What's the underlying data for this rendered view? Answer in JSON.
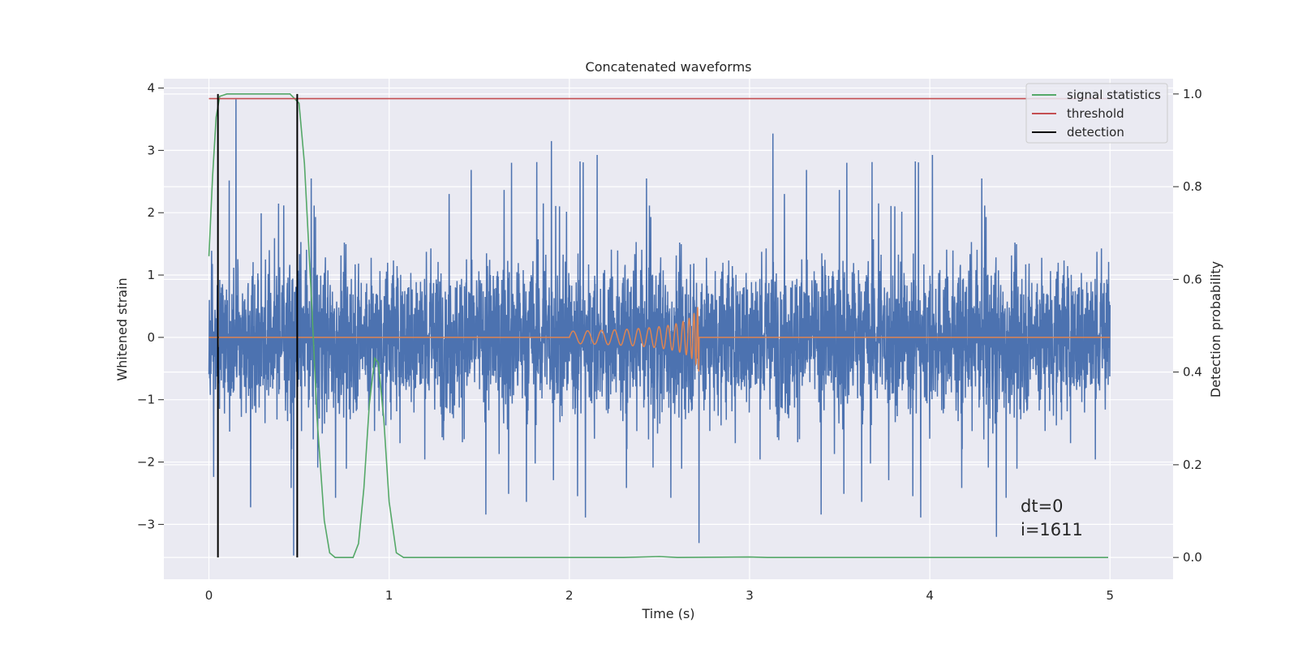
{
  "chart_data": {
    "type": "line",
    "title": "Concatenated waveforms",
    "xlabel": "Time (s)",
    "ylabel": "Whitened strain",
    "ylabel_right": "Detection probability",
    "xlim": [
      -0.25,
      5.35
    ],
    "ylim": [
      -3.88,
      4.15
    ],
    "ylim_right": [
      -0.047,
      1.033
    ],
    "xticks": [
      0,
      1,
      2,
      3,
      4,
      5
    ],
    "xtick_labels": [
      "0",
      "1",
      "2",
      "3",
      "4",
      "5"
    ],
    "yticks": [
      -3,
      -2,
      -1,
      0,
      1,
      2,
      3,
      4
    ],
    "ytick_labels": [
      "−3",
      "−2",
      "−1",
      "0",
      "1",
      "2",
      "3",
      "4"
    ],
    "yticks_right": [
      0.0,
      0.2,
      0.4,
      0.6,
      0.8,
      1.0
    ],
    "ytick_labels_right": [
      "0.0",
      "0.2",
      "0.4",
      "0.6",
      "0.8",
      "1.0"
    ],
    "grid": true,
    "legend_position": "top-right",
    "legend": [
      {
        "label": "signal statistics",
        "color": "#55a868"
      },
      {
        "label": "threshold",
        "color": "#c44e52"
      },
      {
        "label": "detection",
        "color": "#000000"
      }
    ],
    "series": [
      {
        "name": "",
        "role": "whitened-noise",
        "axis": "left",
        "color": "#4c72b0",
        "x_range": [
          0,
          5
        ],
        "envelope": "dense noise, mostly within ±1.3, peaks up to about 3.8 and down to about -3.5",
        "notable_points": [
          {
            "x": 0.15,
            "y": 3.82
          },
          {
            "x": 1.9,
            "y": 3.15
          },
          {
            "x": 3.13,
            "y": 3.27
          },
          {
            "x": 4.37,
            "y": -3.2
          },
          {
            "x": 0.47,
            "y": -3.5
          },
          {
            "x": 2.72,
            "y": -3.3
          }
        ]
      },
      {
        "name": "",
        "role": "injected-chirp",
        "axis": "left",
        "color": "#dd8452",
        "x_range": [
          0,
          5
        ],
        "chirp_start": 2.0,
        "chirp_end": 2.72,
        "peak_amplitude": 0.6,
        "baseline": 0
      },
      {
        "name": "signal statistics",
        "axis": "right",
        "color": "#55a868",
        "points": [
          [
            0.0,
            0.65
          ],
          [
            0.02,
            0.82
          ],
          [
            0.04,
            0.95
          ],
          [
            0.06,
            0.995
          ],
          [
            0.1,
            1.0
          ],
          [
            0.45,
            1.0
          ],
          [
            0.5,
            0.98
          ],
          [
            0.53,
            0.85
          ],
          [
            0.57,
            0.55
          ],
          [
            0.6,
            0.3
          ],
          [
            0.64,
            0.08
          ],
          [
            0.67,
            0.01
          ],
          [
            0.7,
            0.0
          ],
          [
            0.8,
            0.0
          ],
          [
            0.83,
            0.03
          ],
          [
            0.86,
            0.15
          ],
          [
            0.89,
            0.33
          ],
          [
            0.92,
            0.43
          ],
          [
            0.94,
            0.42
          ],
          [
            0.97,
            0.3
          ],
          [
            1.0,
            0.12
          ],
          [
            1.04,
            0.01
          ],
          [
            1.08,
            0.0
          ],
          [
            2.3,
            0.0
          ],
          [
            2.5,
            0.002
          ],
          [
            2.6,
            0.0
          ],
          [
            3.0,
            0.001
          ],
          [
            3.1,
            0.0
          ],
          [
            4.99,
            0.0
          ]
        ]
      },
      {
        "name": "threshold",
        "axis": "right",
        "color": "#c44e52",
        "value": 0.99,
        "x_range": [
          0,
          5
        ]
      },
      {
        "name": "detection",
        "axis": "right",
        "color": "#000000",
        "vlines": [
          0.05,
          0.49
        ],
        "range": [
          0,
          1.0
        ]
      }
    ],
    "annotations": [
      "dt=0",
      "i=1611"
    ]
  }
}
